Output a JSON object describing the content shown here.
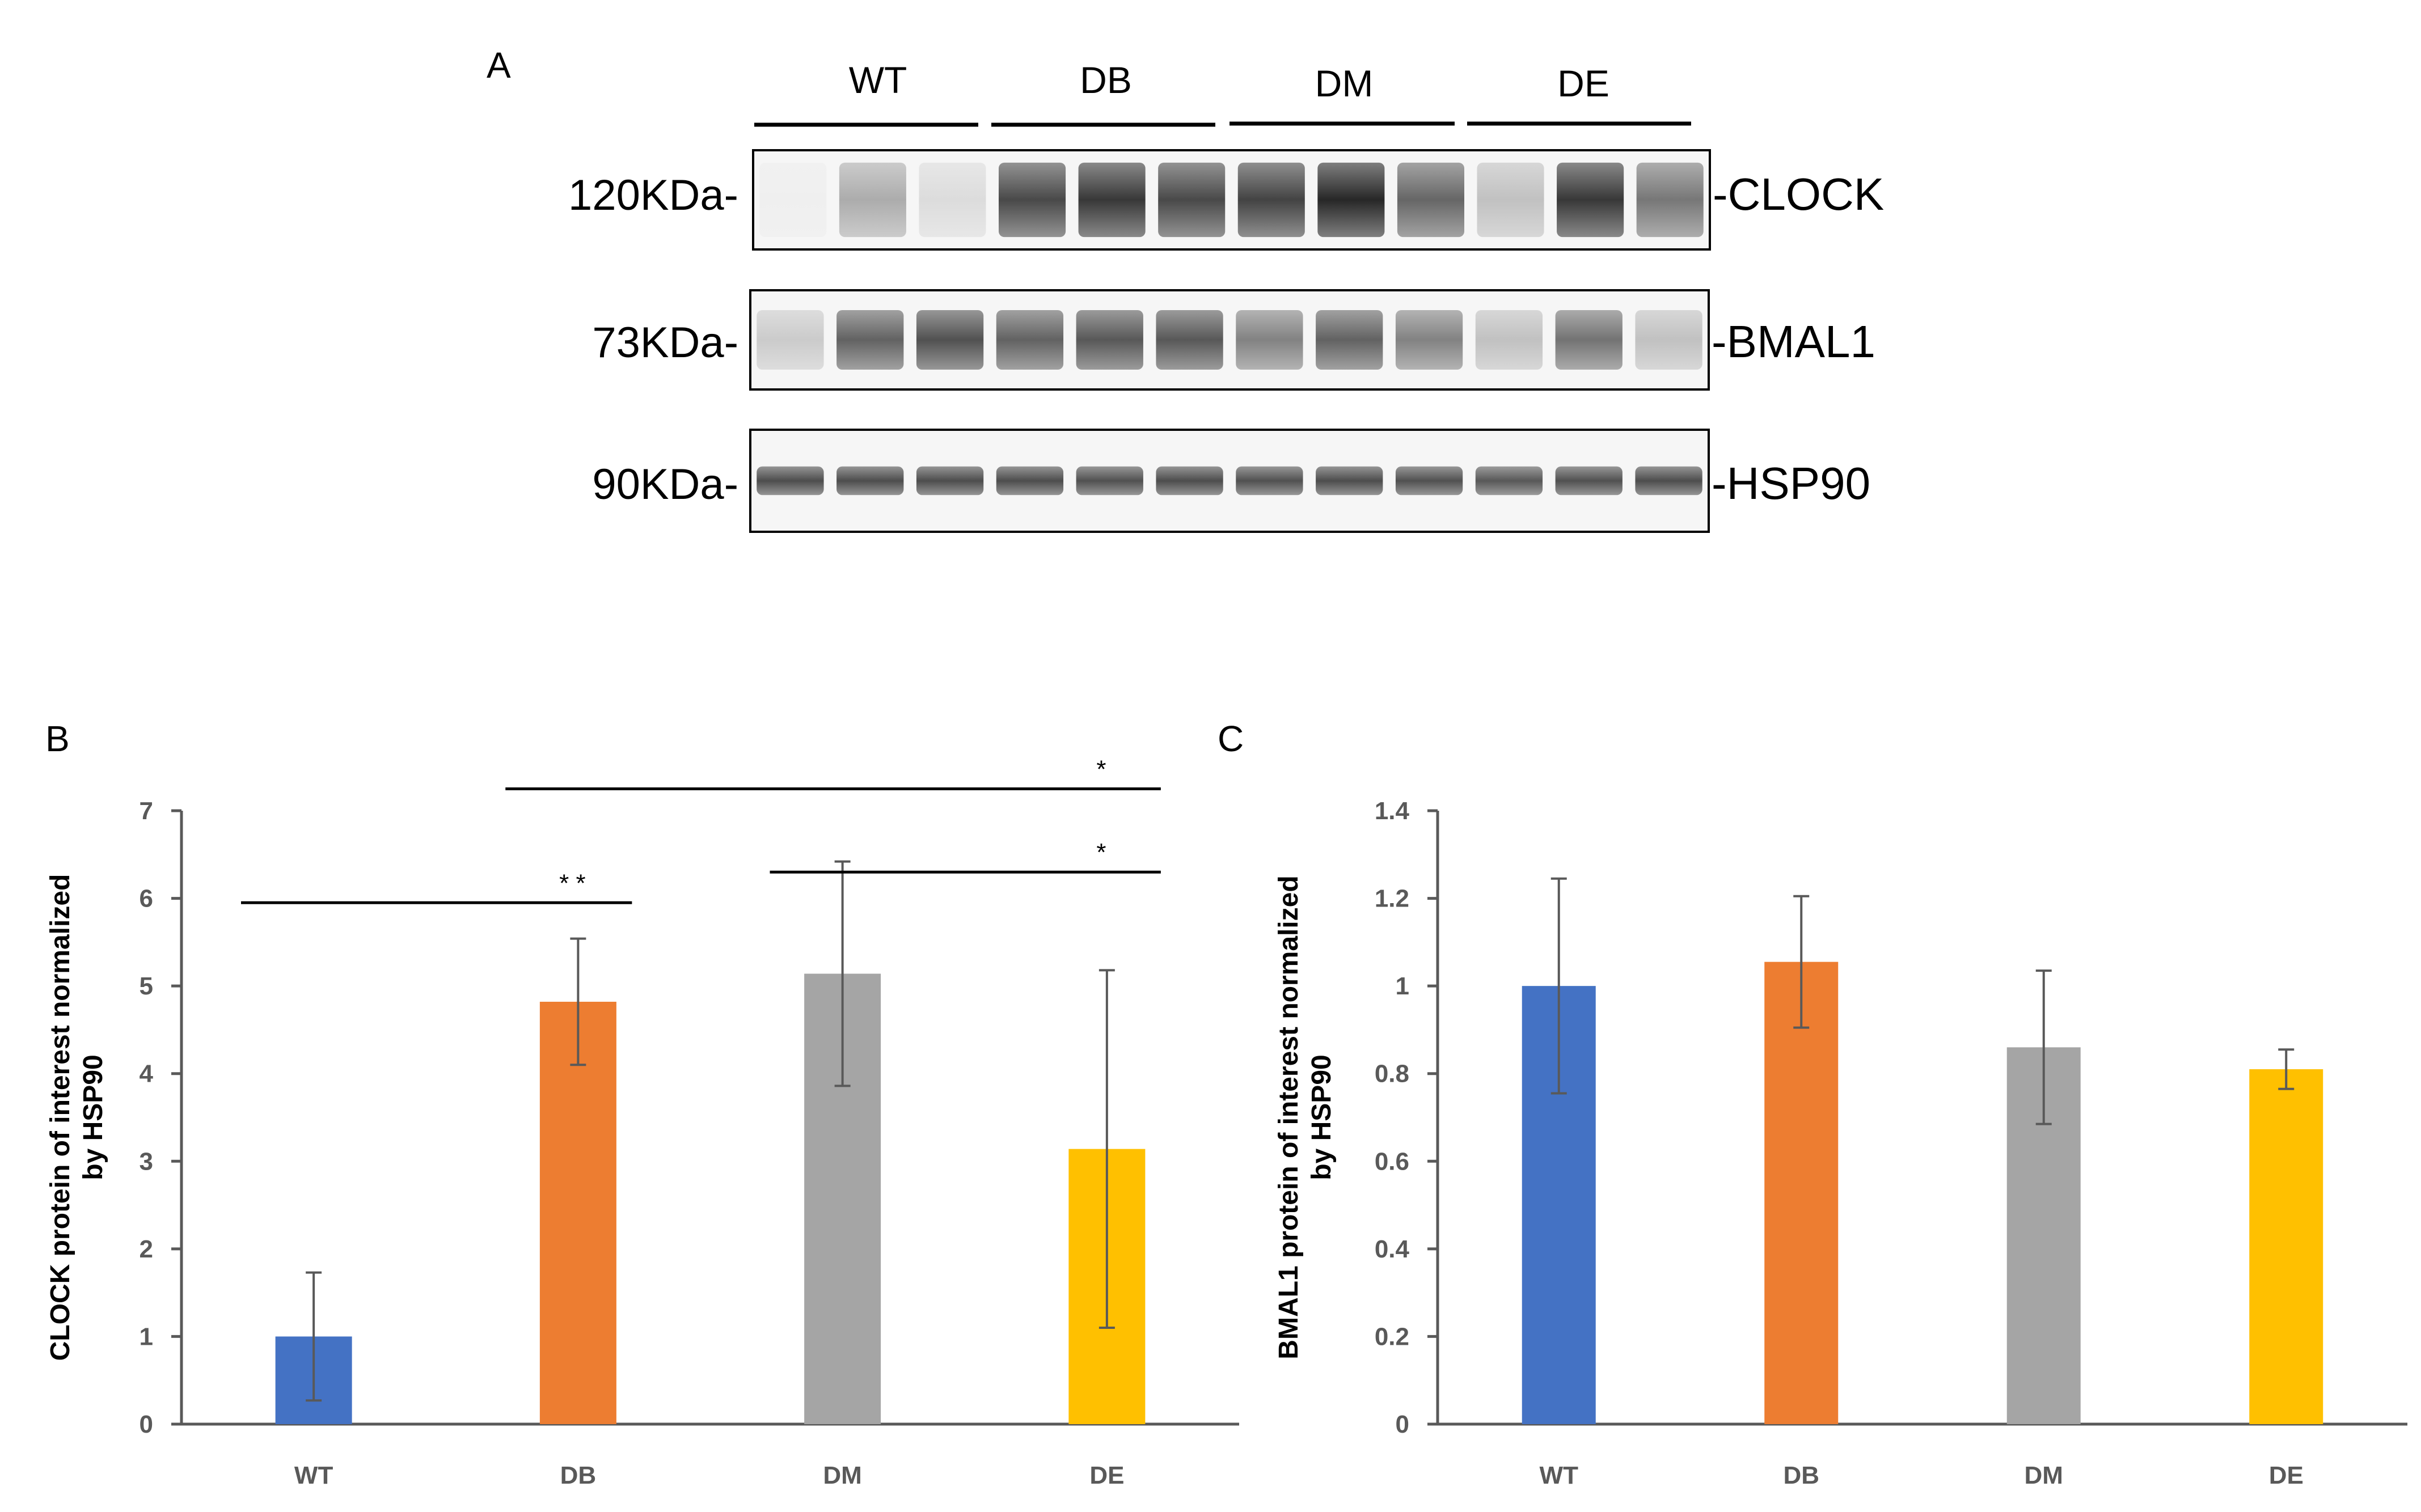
{
  "colors": {
    "WT": "#4472C4",
    "DB": "#ED7D31",
    "DM": "#A5A5A5",
    "DE": "#FFC000",
    "axis": "#595959",
    "error_bar": "#595959"
  },
  "panel_a": {
    "label": "A",
    "groups": [
      "WT",
      "DB",
      "DM",
      "DE"
    ],
    "blots": [
      {
        "mw": "120KDa-",
        "protein": "-CLOCK",
        "band_intensity": [
          0.03,
          0.35,
          0.12,
          0.82,
          0.9,
          0.82,
          0.85,
          0.98,
          0.68,
          0.25,
          0.9,
          0.6
        ]
      },
      {
        "mw": "73KDa-",
        "protein": "-BMAL1",
        "band_intensity": [
          0.2,
          0.7,
          0.78,
          0.7,
          0.75,
          0.75,
          0.55,
          0.7,
          0.55,
          0.25,
          0.62,
          0.25
        ]
      },
      {
        "mw": "90KDa-",
        "protein": "-HSP90",
        "band_intensity": [
          0.8,
          0.8,
          0.8,
          0.8,
          0.78,
          0.8,
          0.78,
          0.8,
          0.78,
          0.75,
          0.78,
          0.8
        ]
      }
    ]
  },
  "chart_data": [
    {
      "panel": "B",
      "type": "bar",
      "categories": [
        "WT",
        "DB",
        "DM",
        "DE"
      ],
      "values": [
        1.0,
        4.82,
        5.14,
        3.14
      ],
      "error": [
        0.73,
        0.72,
        1.28,
        2.04
      ],
      "ylim": [
        0,
        7
      ],
      "yticks": [
        "0",
        "1",
        "2",
        "3",
        "4",
        "5",
        "6",
        "7"
      ],
      "ylabel_line1": "CLOCK protein of interest normalized",
      "ylabel_line2": "by HSP90",
      "xlabel": "",
      "title": "",
      "significance": [
        {
          "from": "WT",
          "to": "DB",
          "label": "* *",
          "level": 5.95
        },
        {
          "from": "DM",
          "to": "DE",
          "label": "*",
          "level": 6.3
        },
        {
          "from": "DB",
          "to": "DE",
          "label": "*",
          "level": 7.25
        }
      ]
    },
    {
      "panel": "C",
      "type": "bar",
      "categories": [
        "WT",
        "DB",
        "DM",
        "DE"
      ],
      "values": [
        1.0,
        1.055,
        0.86,
        0.81
      ],
      "error": [
        0.245,
        0.15,
        0.175,
        0.045
      ],
      "ylim": [
        0,
        1.4
      ],
      "yticks": [
        "0",
        "0.2",
        "0.4",
        "0.6",
        "0.8",
        "1",
        "1.2",
        "1.4"
      ],
      "ylabel_line1": "BMAL1 protein of interest normalized",
      "ylabel_line2": "by HSP90",
      "xlabel": "",
      "title": ""
    }
  ]
}
